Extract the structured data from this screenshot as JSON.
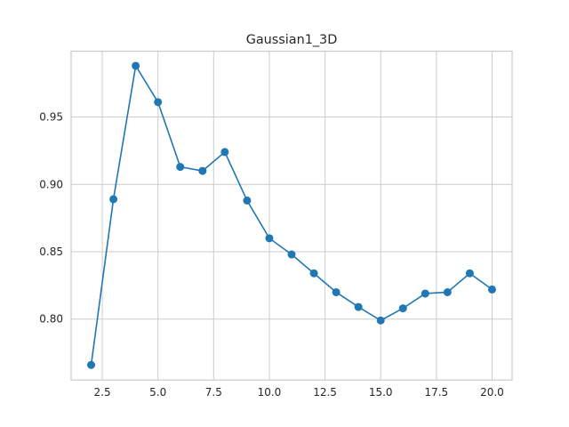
{
  "chart_data": {
    "type": "line",
    "title": "Gaussian1_3D",
    "xlabel": "",
    "ylabel": "",
    "xlim": [
      1.1,
      20.9
    ],
    "ylim": [
      0.7548,
      0.9988
    ],
    "xticks": [
      2.5,
      5.0,
      7.5,
      10.0,
      12.5,
      15.0,
      17.5,
      20.0
    ],
    "xtick_labels": [
      "2.5",
      "5.0",
      "7.5",
      "10.0",
      "12.5",
      "15.0",
      "17.5",
      "20.0"
    ],
    "yticks": [
      0.8,
      0.85,
      0.9,
      0.95
    ],
    "ytick_labels": [
      "0.80",
      "0.85",
      "0.90",
      "0.95"
    ],
    "grid": true,
    "marker": "circle",
    "color": "#1f77b4",
    "x": [
      2,
      3,
      4,
      5,
      6,
      7,
      8,
      9,
      10,
      11,
      12,
      13,
      14,
      15,
      16,
      17,
      18,
      19,
      20
    ],
    "series": [
      {
        "values": [
          0.766,
          0.889,
          0.988,
          0.961,
          0.913,
          0.91,
          0.924,
          0.888,
          0.86,
          0.848,
          0.834,
          0.82,
          0.809,
          0.799,
          0.808,
          0.819,
          0.82,
          0.834,
          0.822
        ]
      }
    ]
  }
}
